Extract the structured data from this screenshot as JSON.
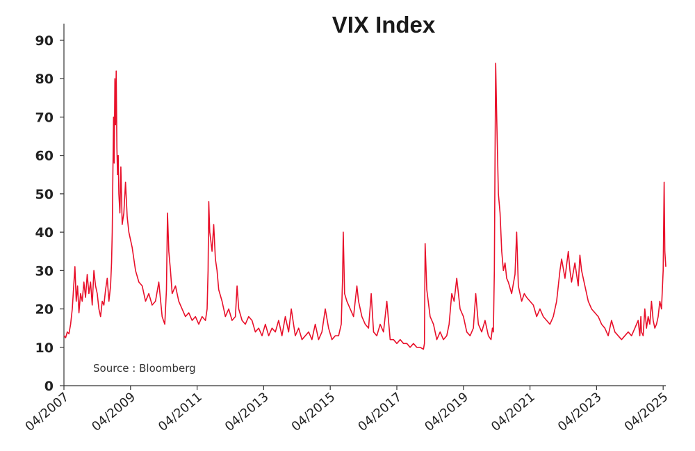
{
  "chart_data": {
    "type": "line",
    "title": "VIX Index",
    "source": "Source : Bloomberg",
    "ylim": [
      0,
      95
    ],
    "yticks": [
      0,
      10,
      20,
      30,
      40,
      50,
      60,
      70,
      80,
      90
    ],
    "xlim": [
      2007.25,
      2025.33
    ],
    "xticks": [
      {
        "x": 2007.25,
        "label": "04/2007"
      },
      {
        "x": 2009.25,
        "label": "04/2009"
      },
      {
        "x": 2011.25,
        "label": "04/2011"
      },
      {
        "x": 2013.25,
        "label": "04/2013"
      },
      {
        "x": 2015.25,
        "label": "04/2015"
      },
      {
        "x": 2017.25,
        "label": "04/2017"
      },
      {
        "x": 2019.25,
        "label": "04/2019"
      },
      {
        "x": 2021.25,
        "label": "04/2021"
      },
      {
        "x": 2023.25,
        "label": "04/2023"
      },
      {
        "x": 2025.25,
        "label": "04/2025"
      }
    ],
    "grid": false,
    "line_color": "#e8102a",
    "series": [
      {
        "name": "",
        "x": [
          2007.25,
          2007.3,
          2007.35,
          2007.4,
          2007.45,
          2007.5,
          2007.55,
          2007.58,
          2007.62,
          2007.66,
          2007.7,
          2007.75,
          2007.8,
          2007.85,
          2007.9,
          2007.95,
          2008.0,
          2008.05,
          2008.1,
          2008.15,
          2008.2,
          2008.25,
          2008.3,
          2008.35,
          2008.4,
          2008.45,
          2008.5,
          2008.55,
          2008.6,
          2008.65,
          2008.68,
          2008.7,
          2008.72,
          2008.74,
          2008.76,
          2008.78,
          2008.8,
          2008.82,
          2008.84,
          2008.86,
          2008.88,
          2008.9,
          2008.93,
          2008.96,
          2009.0,
          2009.05,
          2009.1,
          2009.15,
          2009.2,
          2009.3,
          2009.4,
          2009.5,
          2009.6,
          2009.7,
          2009.8,
          2009.9,
          2010.0,
          2010.1,
          2010.2,
          2010.28,
          2010.33,
          2010.36,
          2010.4,
          2010.45,
          2010.5,
          2010.6,
          2010.7,
          2010.8,
          2010.9,
          2011.0,
          2011.1,
          2011.2,
          2011.3,
          2011.4,
          2011.5,
          2011.55,
          2011.58,
          2011.6,
          2011.63,
          2011.66,
          2011.7,
          2011.75,
          2011.8,
          2011.85,
          2011.9,
          2012.0,
          2012.1,
          2012.2,
          2012.3,
          2012.4,
          2012.45,
          2012.5,
          2012.6,
          2012.7,
          2012.8,
          2012.9,
          2013.0,
          2013.1,
          2013.2,
          2013.3,
          2013.4,
          2013.5,
          2013.6,
          2013.7,
          2013.8,
          2013.9,
          2014.0,
          2014.08,
          2014.2,
          2014.3,
          2014.4,
          2014.5,
          2014.6,
          2014.7,
          2014.8,
          2014.9,
          2015.0,
          2015.1,
          2015.2,
          2015.3,
          2015.4,
          2015.5,
          2015.58,
          2015.62,
          2015.64,
          2015.68,
          2015.75,
          2015.85,
          2015.95,
          2016.05,
          2016.1,
          2016.2,
          2016.3,
          2016.4,
          2016.48,
          2016.55,
          2016.65,
          2016.75,
          2016.85,
          2016.95,
          2017.05,
          2017.15,
          2017.25,
          2017.35,
          2017.45,
          2017.55,
          2017.65,
          2017.75,
          2017.85,
          2017.95,
          2018.05,
          2018.08,
          2018.1,
          2018.15,
          2018.25,
          2018.35,
          2018.45,
          2018.55,
          2018.65,
          2018.75,
          2018.82,
          2018.9,
          2018.97,
          2019.05,
          2019.15,
          2019.25,
          2019.35,
          2019.45,
          2019.55,
          2019.62,
          2019.7,
          2019.8,
          2019.9,
          2020.0,
          2020.08,
          2020.12,
          2020.15,
          2020.18,
          2020.2,
          2020.22,
          2020.25,
          2020.3,
          2020.35,
          2020.4,
          2020.45,
          2020.5,
          2020.55,
          2020.6,
          2020.7,
          2020.8,
          2020.85,
          2020.9,
          2021.0,
          2021.08,
          2021.15,
          2021.25,
          2021.35,
          2021.45,
          2021.55,
          2021.65,
          2021.75,
          2021.85,
          2021.95,
          2022.05,
          2022.15,
          2022.2,
          2022.3,
          2022.4,
          2022.45,
          2022.5,
          2022.6,
          2022.7,
          2022.75,
          2022.8,
          2022.9,
          2023.0,
          2023.1,
          2023.2,
          2023.3,
          2023.4,
          2023.5,
          2023.6,
          2023.7,
          2023.8,
          2023.9,
          2024.0,
          2024.1,
          2024.2,
          2024.3,
          2024.4,
          2024.5,
          2024.55,
          2024.58,
          2024.6,
          2024.65,
          2024.7,
          2024.75,
          2024.8,
          2024.85,
          2024.9,
          2024.95,
          2025.0,
          2025.05,
          2025.1,
          2025.15,
          2025.2,
          2025.25,
          2025.28,
          2025.3,
          2025.33
        ],
        "y": [
          13,
          12.5,
          14,
          13.5,
          16,
          20,
          27,
          31,
          22,
          26,
          19,
          24,
          22,
          27,
          23,
          29,
          24,
          27,
          21,
          30,
          26,
          24,
          20,
          18,
          22,
          21,
          25,
          28,
          22,
          26,
          32,
          40,
          55,
          70,
          58,
          80,
          68,
          82,
          62,
          55,
          60,
          50,
          45,
          57,
          42,
          45,
          53,
          44,
          40,
          36,
          30,
          27,
          26,
          22,
          24,
          21,
          22,
          27,
          18,
          16,
          25,
          45,
          35,
          30,
          24,
          26,
          22,
          20,
          18,
          19,
          17,
          18,
          16,
          18,
          17,
          20,
          30,
          48,
          40,
          38,
          35,
          42,
          33,
          30,
          25,
          22,
          18,
          20,
          17,
          18,
          26,
          20,
          17,
          16,
          18,
          17,
          14,
          15,
          13,
          16,
          13,
          15,
          14,
          17,
          13,
          18,
          14,
          20,
          13,
          15,
          12,
          13,
          14,
          12,
          16,
          12,
          14,
          20,
          15,
          12,
          13,
          13,
          16,
          28,
          40,
          24,
          22,
          20,
          18,
          26,
          22,
          18,
          16,
          15,
          24,
          14,
          13,
          16,
          14,
          22,
          12,
          12,
          11,
          12,
          11,
          11,
          10,
          11,
          10,
          10,
          9.5,
          11,
          37,
          25,
          18,
          16,
          12,
          14,
          12,
          13,
          16,
          24,
          22,
          28,
          20,
          18,
          14,
          13,
          15,
          24,
          16,
          14,
          17,
          13,
          12,
          15,
          14,
          30,
          60,
          84,
          70,
          50,
          45,
          35,
          30,
          32,
          28,
          27,
          24,
          29,
          40,
          26,
          22,
          24,
          23,
          22,
          21,
          18,
          20,
          18,
          17,
          16,
          18,
          22,
          30,
          33,
          28,
          35,
          30,
          27,
          32,
          26,
          34,
          30,
          26,
          22,
          20,
          19,
          18,
          16,
          15,
          13,
          17,
          14,
          13,
          12,
          13,
          14,
          13,
          15,
          17,
          13,
          18,
          14,
          13,
          20,
          15,
          18,
          16,
          22,
          17,
          15,
          16,
          18,
          22,
          20,
          30,
          53,
          35,
          31
        ]
      }
    ]
  }
}
